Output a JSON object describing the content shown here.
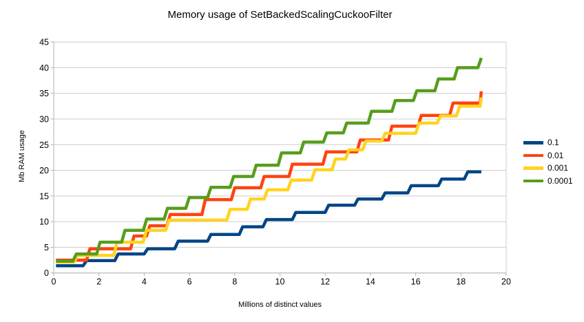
{
  "chart_data": {
    "type": "line",
    "title": "Memory usage of SetBackedScalingCuckooFilter",
    "xlabel": "Millions of distinct values",
    "ylabel": "Mb RAM usage",
    "xlim": [
      0,
      20
    ],
    "ylim": [
      0,
      45
    ],
    "x_ticks": [
      0,
      2,
      4,
      6,
      8,
      10,
      12,
      14,
      16,
      18,
      20
    ],
    "y_ticks": [
      0,
      5,
      10,
      15,
      20,
      25,
      30,
      35,
      40,
      45
    ],
    "grid": "horizontal-only",
    "legend_position": "right",
    "line_style": "step-after",
    "x_start": 0.1,
    "x_end": 18.9,
    "grid_color": "#cccccc",
    "axis_color": "#b3b3b3",
    "series": [
      {
        "name": "0.1",
        "color": "#004586",
        "steps": [
          [
            0.1,
            1.4
          ],
          [
            1.3,
            2.4
          ],
          [
            2.7,
            3.7
          ],
          [
            4.0,
            4.7
          ],
          [
            5.35,
            6.2
          ],
          [
            6.8,
            7.5
          ],
          [
            8.2,
            9.0
          ],
          [
            9.25,
            10.4
          ],
          [
            10.55,
            11.8
          ],
          [
            12.0,
            13.2
          ],
          [
            13.3,
            14.4
          ],
          [
            14.5,
            15.6
          ],
          [
            15.65,
            17.0
          ],
          [
            17.0,
            18.3
          ],
          [
            18.15,
            19.7
          ]
        ]
      },
      {
        "name": "0.01",
        "color": "#ff420e",
        "steps": [
          [
            0.1,
            2.5
          ],
          [
            1.45,
            4.7
          ],
          [
            3.4,
            7.2
          ],
          [
            4.1,
            9.2
          ],
          [
            5.0,
            11.4
          ],
          [
            6.55,
            14.3
          ],
          [
            7.85,
            16.6
          ],
          [
            9.15,
            18.8
          ],
          [
            10.4,
            21.2
          ],
          [
            11.9,
            23.6
          ],
          [
            13.4,
            25.9
          ],
          [
            14.8,
            28.6
          ],
          [
            16.1,
            30.7
          ],
          [
            17.5,
            33.1
          ],
          [
            18.85,
            35.4
          ]
        ]
      },
      {
        "name": "0.001",
        "color": "#ffd320",
        "steps": [
          [
            0.1,
            2.1
          ],
          [
            0.9,
            3.4
          ],
          [
            2.65,
            6.0
          ],
          [
            3.95,
            8.3
          ],
          [
            4.95,
            10.3
          ],
          [
            7.65,
            12.4
          ],
          [
            8.55,
            14.4
          ],
          [
            9.3,
            16.2
          ],
          [
            10.35,
            18.1
          ],
          [
            11.4,
            20.1
          ],
          [
            12.3,
            22.2
          ],
          [
            12.9,
            24.0
          ],
          [
            13.65,
            25.7
          ],
          [
            14.5,
            27.2
          ],
          [
            16.0,
            29.2
          ],
          [
            16.95,
            30.6
          ],
          [
            17.8,
            32.5
          ],
          [
            18.85,
            34.2
          ]
        ]
      },
      {
        "name": "0.0001",
        "color": "#579d1c",
        "steps": [
          [
            0.1,
            2.3
          ],
          [
            0.85,
            3.7
          ],
          [
            1.9,
            6.0
          ],
          [
            3.0,
            8.3
          ],
          [
            3.96,
            10.5
          ],
          [
            4.88,
            12.6
          ],
          [
            5.84,
            14.7
          ],
          [
            6.8,
            16.7
          ],
          [
            7.8,
            18.8
          ],
          [
            8.8,
            21.0
          ],
          [
            9.92,
            23.4
          ],
          [
            10.9,
            25.5
          ],
          [
            11.92,
            27.3
          ],
          [
            12.8,
            29.2
          ],
          [
            13.9,
            31.5
          ],
          [
            14.95,
            33.6
          ],
          [
            15.9,
            35.5
          ],
          [
            16.85,
            37.8
          ],
          [
            17.7,
            40.0
          ],
          [
            18.75,
            41.9
          ]
        ]
      }
    ]
  }
}
